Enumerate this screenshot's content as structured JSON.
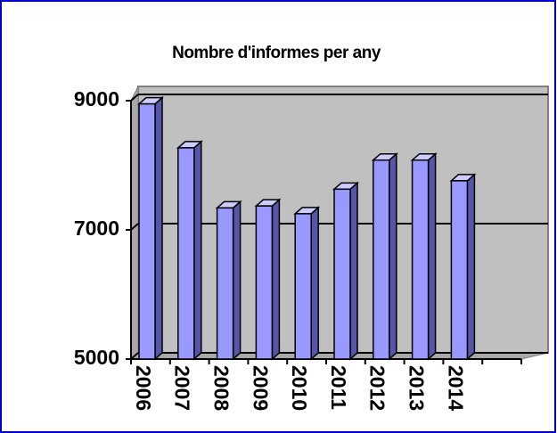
{
  "chart_data": {
    "type": "bar",
    "title": "Nombre d'informes per any",
    "categories": [
      "2006",
      "2007",
      "2008",
      "2009",
      "2010",
      "2011",
      "2012",
      "2013",
      "2014",
      null
    ],
    "values": [
      8950,
      8270,
      7340,
      7370,
      7250,
      7630,
      8080,
      8080,
      7760,
      null
    ],
    "color": "#9999ff",
    "ylim": [
      5000,
      9000
    ],
    "yticks": [
      5000,
      7000,
      9000
    ],
    "grid": true
  }
}
